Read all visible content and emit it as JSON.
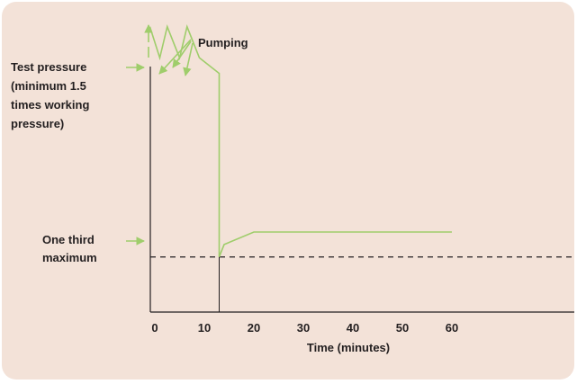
{
  "colors": {
    "background": "#f3e2d8",
    "axis": "#231f20",
    "series": "#9fcd6b",
    "arrow": "#9fcd6b",
    "reference_line": "#231f20"
  },
  "chart_data": {
    "type": "line",
    "title": "",
    "xlabel": "Time (minutes)",
    "ylabel": "",
    "x_ticks": [
      0,
      10,
      20,
      30,
      40,
      50,
      60
    ],
    "xlim": [
      -1,
      82
    ],
    "ylim": [
      0,
      1
    ],
    "grid": false,
    "series": [
      {
        "name": "",
        "x": [
          -1,
          1,
          2.5,
          5,
          6.5,
          9,
          13,
          13,
          14,
          20,
          60
        ],
        "y": [
          0.92,
          0.82,
          0.92,
          0.82,
          0.92,
          0.82,
          0.77,
          0.18,
          0.22,
          0.26,
          0.26
        ]
      }
    ],
    "reference_lines": [
      {
        "y": 0.18,
        "style": "dashed",
        "label": "One third maximum"
      }
    ],
    "annotations": [
      {
        "text_lines": [
          "Test pressure",
          "(minimum 1.5",
          "times working",
          "pressure)"
        ]
      },
      {
        "text_lines": [
          "One third",
          "maximum"
        ]
      },
      {
        "text_lines": [
          "Pumping"
        ]
      }
    ]
  }
}
